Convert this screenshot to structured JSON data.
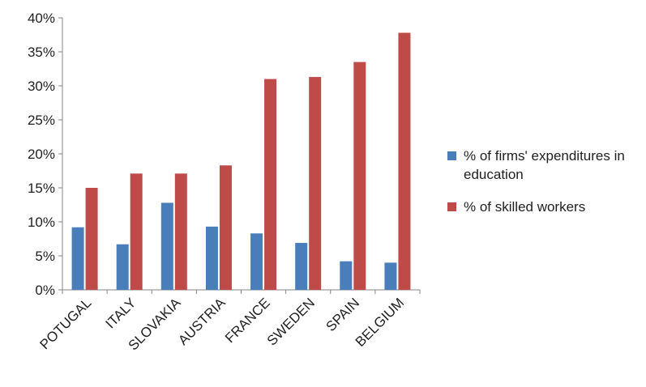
{
  "colors": {
    "series_1": "#4a7ebb",
    "series_2": "#be4b48",
    "axis": "#868686"
  },
  "chart_data": {
    "type": "bar",
    "title": "",
    "xlabel": "",
    "ylabel": "",
    "categories": [
      "POTUGAL",
      "ITALY",
      "SLOVAKIA",
      "AUSTRIA",
      "FRANCE",
      "SWEDEN",
      "SPAIN",
      "BELGIUM"
    ],
    "series": [
      {
        "name": "% of firms' expenditures in education",
        "values": [
          9.2,
          6.7,
          12.8,
          9.3,
          8.3,
          6.9,
          4.2,
          4.0
        ]
      },
      {
        "name": "% of skilled workers",
        "values": [
          15.0,
          17.1,
          17.1,
          18.3,
          31.0,
          31.3,
          33.5,
          37.8
        ]
      }
    ],
    "ylim": [
      0,
      40
    ],
    "yticks": [
      "0%",
      "5%",
      "10%",
      "15%",
      "20%",
      "25%",
      "30%",
      "35%",
      "40%"
    ],
    "grid": false,
    "legend_position": "right"
  }
}
